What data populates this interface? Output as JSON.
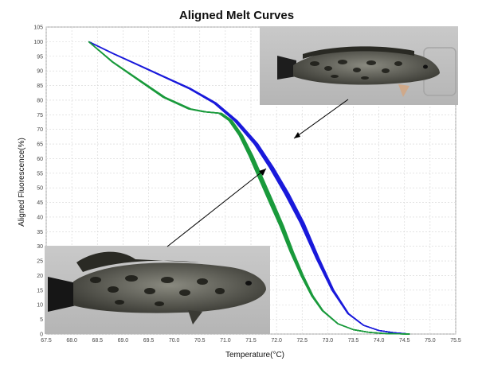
{
  "chart_data": {
    "type": "line",
    "title": "Aligned Melt Curves",
    "xlabel": "Temperature(°C)",
    "ylabel": "Aligned Fluorescence(%)",
    "xlim": [
      67.5,
      75.5
    ],
    "ylim": [
      0,
      105
    ],
    "x_ticks": [
      "67.5",
      "68.0",
      "68.5",
      "69.0",
      "69.5",
      "70.0",
      "70.5",
      "71.0",
      "71.5",
      "72.0",
      "72.5",
      "73.0",
      "73.5",
      "74.0",
      "74.5",
      "75.0",
      "75.5"
    ],
    "y_ticks": [
      "0",
      "5",
      "10",
      "15",
      "20",
      "25",
      "30",
      "35",
      "40",
      "45",
      "50",
      "55",
      "60",
      "65",
      "70",
      "75",
      "80",
      "85",
      "90",
      "95",
      "100",
      "105"
    ],
    "grid": true,
    "series": [
      {
        "color": "#1a1adb",
        "x": [
          68.33,
          68.8,
          69.3,
          69.8,
          70.3,
          70.8,
          71.2,
          71.6,
          71.9,
          72.2,
          72.5,
          72.8,
          73.1,
          73.4,
          73.7,
          74.0,
          74.3,
          74.6
        ],
        "values": [
          100,
          96,
          92,
          88,
          84,
          79,
          73,
          65,
          57,
          48,
          38,
          26,
          15,
          7,
          3,
          1.2,
          0.4,
          0
        ]
      },
      {
        "color": "#1a9a3c",
        "x": [
          68.33,
          68.8,
          69.3,
          69.8,
          70.3,
          70.6,
          70.9,
          71.1,
          71.3,
          71.5,
          71.7,
          71.9,
          72.1,
          72.3,
          72.5,
          72.7,
          72.9,
          73.2,
          73.5,
          73.8,
          74.1,
          74.4,
          74.6
        ],
        "values": [
          100,
          93,
          87,
          81,
          77,
          76,
          75.5,
          73,
          68,
          61,
          53,
          45,
          37,
          28,
          20,
          13,
          8,
          3.5,
          1.5,
          0.6,
          0.2,
          0.05,
          0
        ]
      }
    ],
    "annotations": [
      {
        "description": "top-right fish photo",
        "icon": "snakehead-fish-photo"
      },
      {
        "description": "bottom-left fish photo",
        "icon": "snakehead-fish-photo"
      }
    ]
  }
}
